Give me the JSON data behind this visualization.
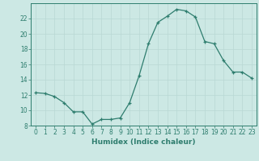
{
  "x": [
    0,
    1,
    2,
    3,
    4,
    5,
    6,
    7,
    8,
    9,
    10,
    11,
    12,
    13,
    14,
    15,
    16,
    17,
    18,
    19,
    20,
    21,
    22,
    23
  ],
  "y": [
    12.3,
    12.2,
    11.8,
    11.0,
    9.8,
    9.8,
    8.2,
    8.8,
    8.8,
    9.0,
    11.0,
    14.5,
    18.7,
    21.5,
    22.3,
    23.2,
    23.0,
    22.2,
    19.0,
    18.7,
    16.5,
    15.0,
    15.0,
    14.2
  ],
  "color": "#2e7d6e",
  "bg_color": "#cce8e4",
  "grid_color": "#b8d8d4",
  "xlabel": "Humidex (Indice chaleur)",
  "ylim": [
    8,
    24
  ],
  "xlim": [
    -0.5,
    23.5
  ],
  "yticks": [
    8,
    10,
    12,
    14,
    16,
    18,
    20,
    22
  ],
  "tick_fontsize": 5.5,
  "label_fontsize": 6.5
}
